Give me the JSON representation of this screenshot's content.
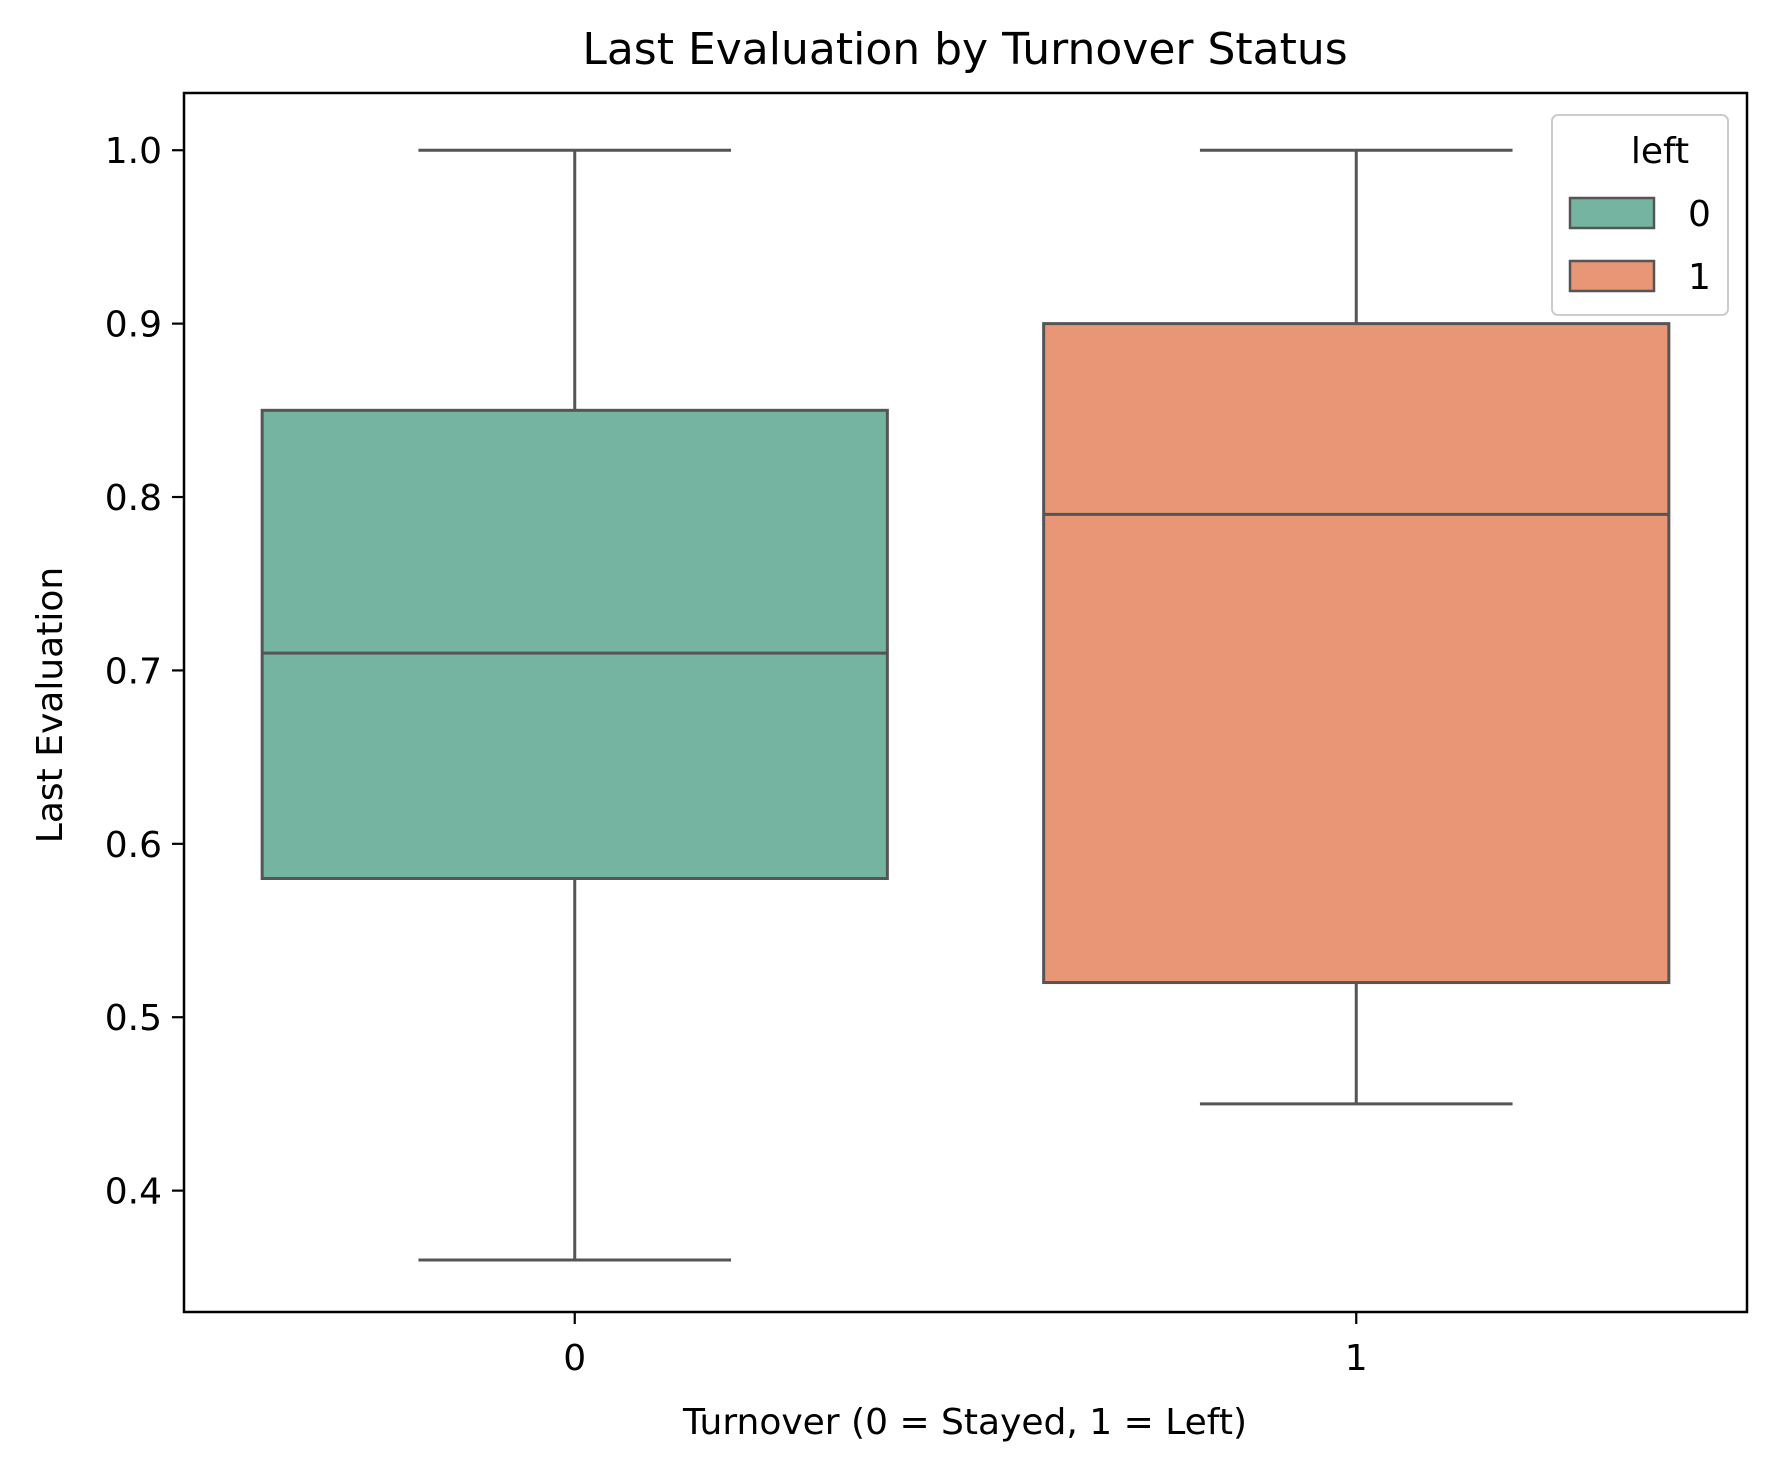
{
  "chart_data": {
    "type": "box",
    "title": "Last Evaluation by Turnover Status",
    "xlabel": "Turnover (0 = Stayed, 1 = Left)",
    "ylabel": "Last Evaluation",
    "categories": [
      "0",
      "1"
    ],
    "ylim": [
      0.33,
      1.033
    ],
    "yticks": [
      0.4,
      0.5,
      0.6,
      0.7,
      0.8,
      0.9,
      1.0
    ],
    "ytick_labels": [
      "0.4",
      "0.5",
      "0.6",
      "0.7",
      "0.8",
      "0.9",
      "1.0"
    ],
    "grid": false,
    "legend": {
      "title": "left",
      "placement": "top-right",
      "entries": [
        {
          "label": "0",
          "color": "#75b4a0"
        },
        {
          "label": "1",
          "color": "#e89675"
        }
      ]
    },
    "series": [
      {
        "category": "0",
        "min": 0.36,
        "q1": 0.58,
        "median": 0.71,
        "q3": 0.85,
        "max": 1.0,
        "color": "#75b4a0"
      },
      {
        "category": "1",
        "min": 0.45,
        "q1": 0.52,
        "median": 0.79,
        "q3": 0.9,
        "max": 1.0,
        "color": "#e89675"
      }
    ],
    "line_color": "#555555"
  }
}
